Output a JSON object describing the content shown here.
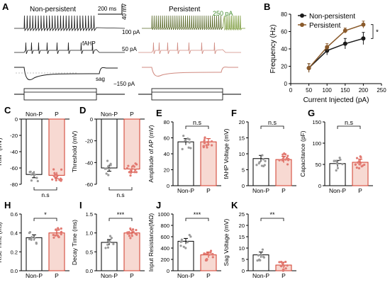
{
  "colors": {
    "nonpersistent": "#1a1a1a",
    "persistent": "#8a5a2b",
    "persistent_trace": "#7a9a3a",
    "persistent_trace_red": "#d08a80",
    "bar_p_fill": "#f7d9d2",
    "bar_p_edge": "#d23a2a",
    "dot_np": "#9a9a9a",
    "dot_p": "#e27a72"
  },
  "panel_a": {
    "letter": "A",
    "title_left": "Non-persistent",
    "title_right": "Persistent",
    "scalebar_time": "200 ms",
    "scalebar_volt": "40 mV",
    "label_100": "100 pA",
    "label_250": "250 pA",
    "label_fahp": "fAHP",
    "label_50": "50 pA",
    "label_sag": "sag",
    "label_m150": "−150 pA"
  },
  "chart_data": [
    {
      "panel": "B",
      "type": "line",
      "xlabel": "Current Injected (pA)",
      "ylabel": "Frequency (Hz)",
      "x": [
        50,
        100,
        150,
        200
      ],
      "xlim": [
        0,
        250
      ],
      "xticks": [
        "0",
        "50",
        "100",
        "150",
        "200",
        "250"
      ],
      "ylim": [
        0,
        80
      ],
      "yticks": [
        "0",
        "20",
        "40",
        "60",
        "80"
      ],
      "legend_placement": "top-left",
      "significance": "*",
      "series": [
        {
          "name": "Non-persistent",
          "values": [
            18,
            38,
            46,
            52
          ],
          "err": [
            5,
            5,
            6,
            7
          ]
        },
        {
          "name": "Persistent",
          "values": [
            18,
            42,
            61,
            68
          ],
          "err": [
            5,
            4,
            3,
            4
          ]
        }
      ]
    },
    {
      "panel": "C",
      "type": "bar",
      "ylabel": "RMP (mV)",
      "categories": [
        "Non-P",
        "P"
      ],
      "values": [
        -68,
        -69
      ],
      "ylim": [
        -80,
        0
      ],
      "yticks": [
        "0",
        "-20",
        "-40",
        "-60",
        "-80"
      ],
      "significance": "n.s",
      "sig_position": "below"
    },
    {
      "panel": "D",
      "type": "bar",
      "ylabel": "Threshold (mV)",
      "categories": [
        "Non-P",
        "P"
      ],
      "values": [
        -45,
        -46
      ],
      "ylim": [
        -60,
        0
      ],
      "yticks": [
        "0",
        "-20",
        "-40",
        "-60"
      ],
      "significance": "n.s",
      "sig_position": "below"
    },
    {
      "panel": "E",
      "type": "bar",
      "ylabel": "Amplitude of AP (mV)",
      "categories": [
        "Non-P",
        "P"
      ],
      "values": [
        55,
        55
      ],
      "ylim": [
        0,
        80
      ],
      "yticks": [
        "0",
        "20",
        "40",
        "60",
        "80"
      ],
      "significance": "n.s",
      "sig_position": "above"
    },
    {
      "panel": "F",
      "type": "bar",
      "ylabel": "fAHP Voltage (mV)",
      "categories": [
        "Non-P",
        "P"
      ],
      "values": [
        8.5,
        8.2
      ],
      "ylim": [
        0,
        20
      ],
      "yticks": [
        "0",
        "5",
        "10",
        "15",
        "20"
      ],
      "significance": "n.s",
      "sig_position": "above"
    },
    {
      "panel": "G",
      "type": "bar",
      "ylabel": "Capacitance (pF)",
      "categories": [
        "Non-P",
        "P"
      ],
      "values": [
        52,
        55
      ],
      "ylim": [
        0,
        150
      ],
      "yticks": [
        "0",
        "50",
        "100",
        "150"
      ],
      "significance": "n.s",
      "sig_position": "above"
    },
    {
      "panel": "H",
      "type": "bar",
      "ylabel": "Rise Time (ms)",
      "categories": [
        "Non-P",
        "P"
      ],
      "values": [
        0.35,
        0.4
      ],
      "ylim": [
        0,
        0.6
      ],
      "yticks": [
        "0.0",
        "0.2",
        "0.4",
        "0.6"
      ],
      "significance": "*",
      "sig_position": "above"
    },
    {
      "panel": "I",
      "type": "bar",
      "ylabel": "Decay Time (ms)",
      "categories": [
        "Non-P",
        "P"
      ],
      "values": [
        0.75,
        1.0
      ],
      "ylim": [
        0,
        1.5
      ],
      "yticks": [
        "0.0",
        "0.5",
        "1.0",
        "1.5"
      ],
      "significance": "***",
      "sig_position": "above"
    },
    {
      "panel": "J",
      "type": "bar",
      "ylabel": "Input Resistance(MΩ)",
      "categories": [
        "Non-P",
        "P"
      ],
      "values": [
        520,
        280
      ],
      "ylim": [
        0,
        1000
      ],
      "yticks": [
        "0",
        "200",
        "400",
        "600",
        "800",
        "1000"
      ],
      "significance": "***",
      "sig_position": "above"
    },
    {
      "panel": "K",
      "type": "bar",
      "ylabel": "Sag Voltage (mV)",
      "categories": [
        "Non-P",
        "P"
      ],
      "values": [
        7,
        2.5
      ],
      "ylim": [
        0,
        25
      ],
      "yticks": [
        "0",
        "5",
        "10",
        "15",
        "20",
        "25"
      ],
      "significance": "**",
      "sig_position": "above"
    }
  ]
}
